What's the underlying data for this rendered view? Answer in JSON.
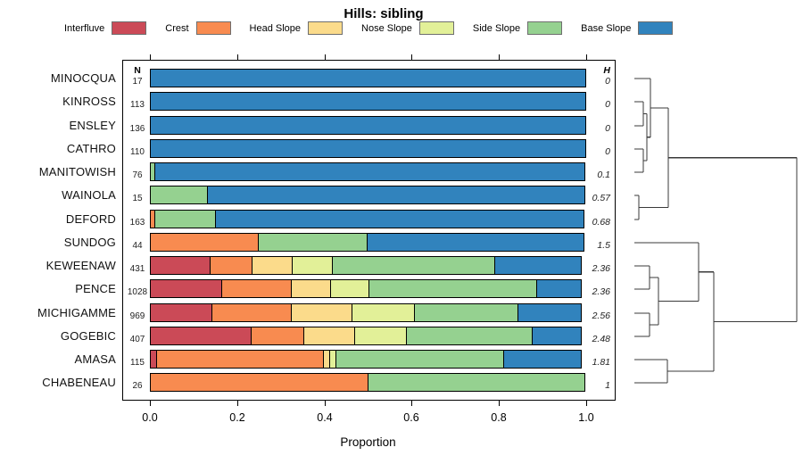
{
  "chart_data": {
    "type": "bar",
    "stacked": true,
    "orientation": "horizontal",
    "title": "Hills: sibling",
    "xlabel": "Proportion",
    "xlim": [
      0,
      1
    ],
    "x_ticks": [
      0,
      0.2,
      0.4,
      0.6,
      0.8,
      1.0
    ],
    "x_tick_labels": [
      "0.0",
      "0.2",
      "0.4",
      "0.6",
      "0.8",
      "1.0"
    ],
    "grid": false,
    "legend_position": "top",
    "n_header": "N",
    "h_header": "H",
    "series_names": [
      "Interfluve",
      "Crest",
      "Head Slope",
      "Nose Slope",
      "Side Slope",
      "Base Slope"
    ],
    "series_colors": [
      "#CB4A57",
      "#F88B50",
      "#FBDB8B",
      "#E2F098",
      "#95D190",
      "#3183BD"
    ],
    "categories": [
      "MINOCQUA",
      "KINROSS",
      "ENSLEY",
      "CATHRO",
      "MANITOWISH",
      "WAINOLA",
      "DEFORD",
      "SUNDOG",
      "KEWEENAW",
      "PENCE",
      "MICHIGAMME",
      "GOGEBIC",
      "AMASA",
      "CHABENEAU"
    ],
    "n_values": [
      "17",
      "113",
      "136",
      "110",
      "76",
      "15",
      "163",
      "44",
      "431",
      "1028",
      "969",
      "407",
      "115",
      "26"
    ],
    "h_values": [
      "0",
      "0",
      "0",
      "0",
      "0.1",
      "0.57",
      "0.68",
      "1.5",
      "2.36",
      "2.36",
      "2.56",
      "2.48",
      "1.81",
      "1"
    ],
    "proportions": [
      [
        0,
        0,
        0,
        0,
        0,
        1
      ],
      [
        0,
        0,
        0,
        0,
        0,
        1
      ],
      [
        0,
        0,
        0,
        0,
        0,
        1
      ],
      [
        0,
        0,
        0,
        0,
        0,
        1
      ],
      [
        0,
        0,
        0,
        0,
        0.013,
        0.987
      ],
      [
        0,
        0,
        0,
        0,
        0.133,
        0.867
      ],
      [
        0,
        0.012,
        0,
        0,
        0.141,
        0.847
      ],
      [
        0,
        0.25,
        0,
        0,
        0.25,
        0.5
      ],
      [
        0.14,
        0.098,
        0.093,
        0.094,
        0.375,
        0.2
      ],
      [
        0.165,
        0.162,
        0.092,
        0.09,
        0.387,
        0.104
      ],
      [
        0.143,
        0.184,
        0.141,
        0.146,
        0.239,
        0.147
      ],
      [
        0.233,
        0.122,
        0.12,
        0.121,
        0.289,
        0.115
      ],
      [
        0.017,
        0.383,
        0.017,
        0.017,
        0.387,
        0.179
      ],
      [
        0,
        0.502,
        0,
        0,
        0.498,
        0
      ]
    ],
    "dendrogram": {
      "h": 1.0,
      "children": [
        {
          "h": 0.209,
          "children": [
            {
              "h": 0.099,
              "children": [
                {
                  "leaf": "MINOCQUA"
                },
                {
                  "h": 0.077,
                  "children": [
                    {
                      "h": 0.055,
                      "children": [
                        {
                          "leaf": "KINROSS"
                        },
                        {
                          "leaf": "ENSLEY"
                        }
                      ]
                    },
                    {
                      "h": 0.055,
                      "children": [
                        {
                          "leaf": "CATHRO"
                        },
                        {
                          "leaf": "MANITOWISH"
                        }
                      ]
                    }
                  ]
                }
              ]
            },
            {
              "h": 0.027,
              "children": [
                {
                  "leaf": "WAINOLA"
                },
                {
                  "leaf": "DEFORD"
                }
              ]
            }
          ]
        },
        {
          "h": 0.489,
          "children": [
            {
              "h": 0.396,
              "children": [
                {
                  "leaf": "SUNDOG"
                },
                {
                  "h": 0.148,
                  "children": [
                    {
                      "h": 0.093,
                      "children": [
                        {
                          "leaf": "KEWEENAW"
                        },
                        {
                          "leaf": "PENCE"
                        }
                      ]
                    },
                    {
                      "h": 0.093,
                      "children": [
                        {
                          "leaf": "MICHIGAMME"
                        },
                        {
                          "leaf": "GOGEBIC"
                        }
                      ]
                    }
                  ]
                }
              ]
            },
            {
              "h": 0.203,
              "children": [
                {
                  "leaf": "AMASA"
                },
                {
                  "leaf": "CHABENEAU"
                }
              ]
            }
          ]
        }
      ]
    }
  }
}
